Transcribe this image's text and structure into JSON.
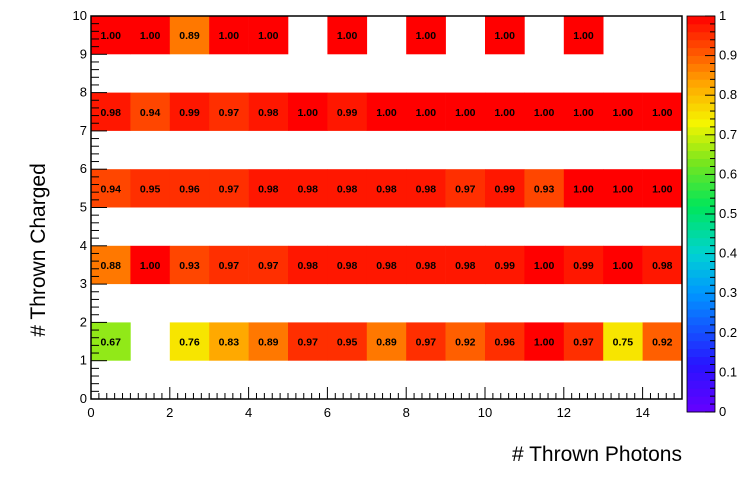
{
  "chart_data": {
    "type": "heatmap",
    "xlabel": "# Thrown Photons",
    "ylabel": "# Thrown Charged",
    "xlim": [
      0,
      15
    ],
    "ylim": [
      0,
      10
    ],
    "x_ticks": [
      "0",
      "2",
      "4",
      "6",
      "8",
      "10",
      "12",
      "14"
    ],
    "y_ticks": [
      "0",
      "1",
      "2",
      "3",
      "4",
      "5",
      "6",
      "7",
      "8",
      "9",
      "10"
    ],
    "z_ticks": [
      "0",
      "0.1",
      "0.2",
      "0.3",
      "0.4",
      "0.5",
      "0.6",
      "0.7",
      "0.8",
      "0.9",
      "1"
    ],
    "zlim": [
      0,
      1
    ],
    "colormap": "rainbow",
    "rows": [
      {
        "charged": 1,
        "values": [
          0.67,
          null,
          0.76,
          0.83,
          0.89,
          0.97,
          0.95,
          0.89,
          0.97,
          0.92,
          0.96,
          1.0,
          0.97,
          0.75,
          0.92
        ],
        "labels": [
          "0.67",
          "",
          "0.76",
          "0.83",
          "0.89",
          "0.97",
          "0.95",
          "0.89",
          "0.97",
          "0.92",
          "0.96",
          "1.00",
          "0.97",
          "0.75",
          "0.92"
        ]
      },
      {
        "charged": 3,
        "values": [
          0.88,
          1.0,
          0.93,
          0.97,
          0.97,
          0.98,
          0.98,
          0.98,
          0.98,
          0.98,
          0.99,
          1.0,
          0.99,
          1.0,
          0.98
        ],
        "labels": [
          "0.88",
          "1.00",
          "0.93",
          "0.97",
          "0.97",
          "0.98",
          "0.98",
          "0.98",
          "0.98",
          "0.98",
          "0.99",
          "1.00",
          "0.99",
          "1.00",
          "0.98"
        ]
      },
      {
        "charged": 5,
        "values": [
          0.94,
          0.95,
          0.96,
          0.97,
          0.98,
          0.98,
          0.98,
          0.98,
          0.98,
          0.97,
          0.99,
          0.93,
          1.0,
          1.0,
          1.0
        ],
        "labels": [
          "0.94",
          "0.95",
          "0.96",
          "0.97",
          "0.98",
          "0.98",
          "0.98",
          "0.98",
          "0.98",
          "0.97",
          "0.99",
          "0.93",
          "1.00",
          "1.00",
          "1.00"
        ]
      },
      {
        "charged": 7,
        "values": [
          0.98,
          0.94,
          0.99,
          0.97,
          0.98,
          1.0,
          0.99,
          1.0,
          1.0,
          1.0,
          1.0,
          1.0,
          1.0,
          1.0,
          1.0
        ],
        "labels": [
          "0.98",
          "0.94",
          "0.99",
          "0.97",
          "0.98",
          "1.00",
          "0.99",
          "1.00",
          "1.00",
          "1.00",
          "1.00",
          "1.00",
          "1.00",
          "1.00",
          "1.00"
        ]
      },
      {
        "charged": 9,
        "values": [
          1.0,
          1.0,
          0.89,
          1.0,
          1.0,
          null,
          1.0,
          null,
          1.0,
          null,
          1.0,
          null,
          1.0,
          null,
          null
        ],
        "labels": [
          "1.00",
          "1.00",
          "0.89",
          "1.00",
          "1.00",
          "",
          "1.00",
          "",
          "1.00",
          "",
          "1.00",
          "",
          "1.00",
          "",
          ""
        ]
      }
    ]
  }
}
